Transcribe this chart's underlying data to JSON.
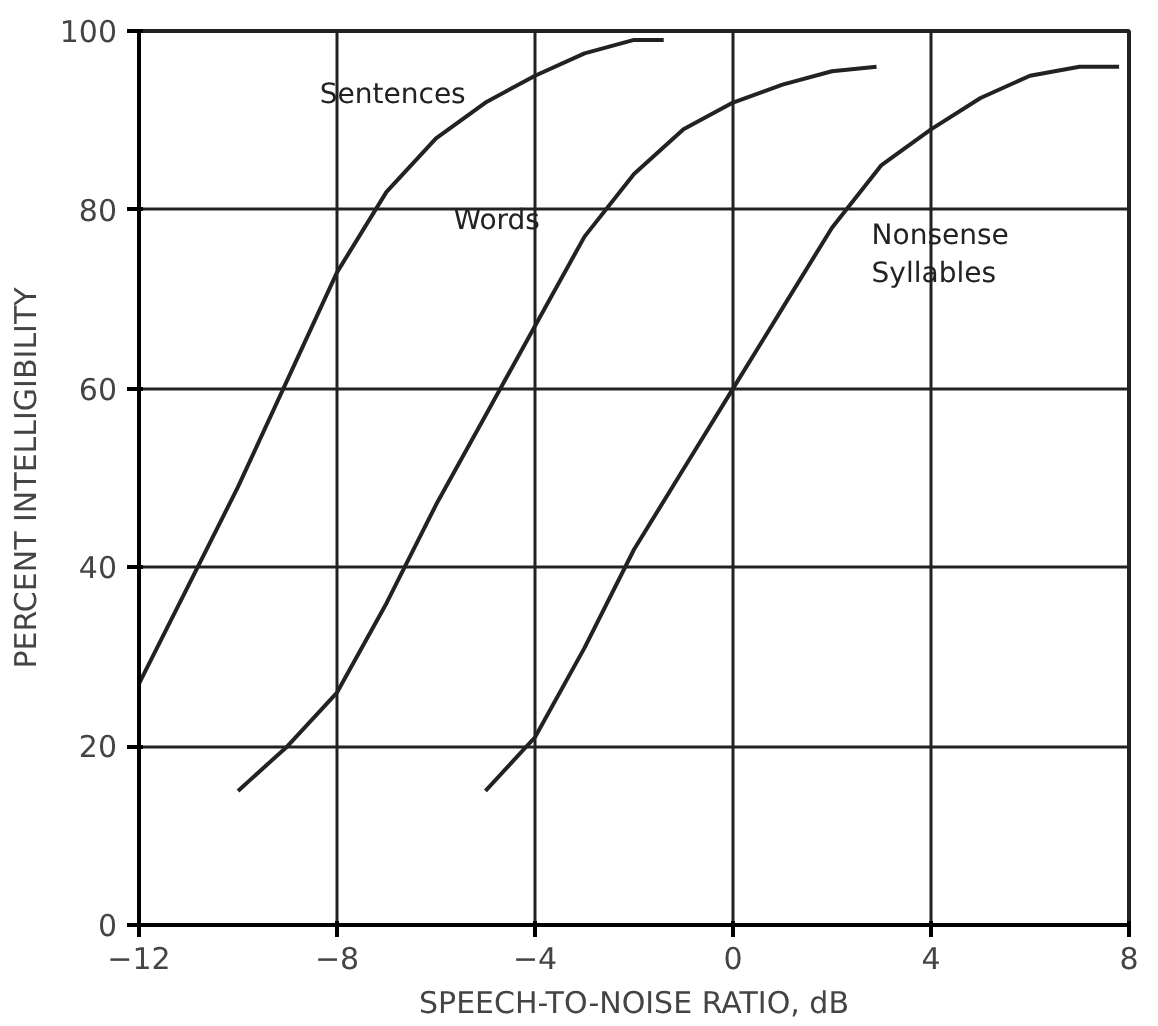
{
  "chart_data": {
    "type": "line",
    "xlabel": "SPEECH-TO-NOISE RATIO, dB",
    "ylabel": "PERCENT INTELLIGIBILITY",
    "xlim": [
      -12,
      8
    ],
    "ylim": [
      0,
      100
    ],
    "xticks": [
      -12,
      -8,
      -4,
      0,
      4,
      8
    ],
    "yticks": [
      0,
      20,
      40,
      60,
      80,
      100
    ],
    "grid": true,
    "series": [
      {
        "name": "Sentences",
        "color": "#222222",
        "x": [
          -12,
          -11,
          -10,
          -9,
          -8,
          -7,
          -6,
          -5,
          -4,
          -3,
          -2,
          -1.4
        ],
        "values": [
          27,
          38,
          49,
          61,
          73,
          82,
          88,
          92,
          95,
          97.5,
          99,
          99
        ]
      },
      {
        "name": "Words",
        "color": "#222222",
        "x": [
          -10,
          -9,
          -8,
          -7,
          -6,
          -5,
          -4,
          -3,
          -2,
          -1,
          0,
          1,
          2,
          2.9
        ],
        "values": [
          15,
          20,
          26,
          36,
          47,
          57,
          67,
          77,
          84,
          89,
          92,
          94,
          95.5,
          96
        ]
      },
      {
        "name": "Nonsense Syllables",
        "color": "#222222",
        "x": [
          -5,
          -4,
          -3,
          -2,
          -1,
          0,
          1,
          2,
          3,
          4,
          5,
          6,
          7,
          7.8
        ],
        "values": [
          15,
          21,
          31,
          42,
          51,
          60,
          69,
          78,
          85,
          89,
          92.5,
          95,
          96,
          96
        ]
      }
    ]
  }
}
